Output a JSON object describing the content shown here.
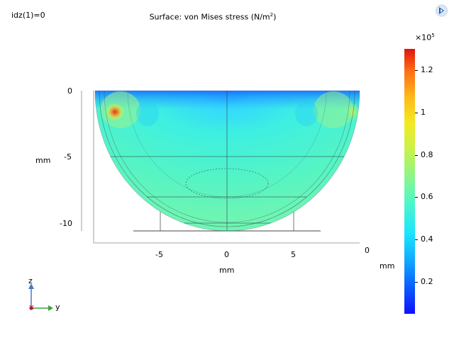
{
  "header": {
    "parameter_label": "idz(1)=0",
    "title_prefix": "Surface: von Mises stress (N/m",
    "title_exponent": "2",
    "title_suffix": ")"
  },
  "chart_data": {
    "type": "heatmap",
    "title": "Surface: von Mises stress (N/m2)",
    "quantity": "von Mises stress",
    "unit": "N/m2",
    "x_axis": {
      "label": "mm",
      "ticks": [
        -5,
        0,
        5
      ],
      "range": [
        -10,
        10
      ]
    },
    "z_axis": {
      "label": "mm",
      "ticks": [
        0,
        -5,
        -10
      ],
      "range": [
        -10.5,
        0
      ]
    },
    "y_depth_axis": {
      "label": "mm",
      "tick": 0
    },
    "colorbar": {
      "multiplier": "×10",
      "multiplier_exponent": "5",
      "ticks": [
        0.2,
        0.4,
        0.6,
        0.8,
        1,
        1.2
      ],
      "tick_labels": [
        "0.2",
        "0.4",
        "0.6",
        "0.8",
        "1",
        "1.2"
      ],
      "range": [
        0.05,
        1.3
      ],
      "colormap": "rainbow"
    },
    "field_summary": {
      "typical_value": 0.5,
      "near_top_surface": 0.3,
      "peak_value": 1.25,
      "peak_location_mm": [
        -8.5,
        -1.5
      ]
    },
    "colors": {
      "low": "#1010ff",
      "mid": "#4ef7c8",
      "high": "#e0150d"
    }
  },
  "axes_triad": {
    "vertical": "z",
    "horizontal": "y",
    "vertical_color": "#4a78c8",
    "horizontal_color": "#3aa33a",
    "origin_color": "#b0202c"
  },
  "icons": {
    "logo": "comsol-logo-icon"
  }
}
